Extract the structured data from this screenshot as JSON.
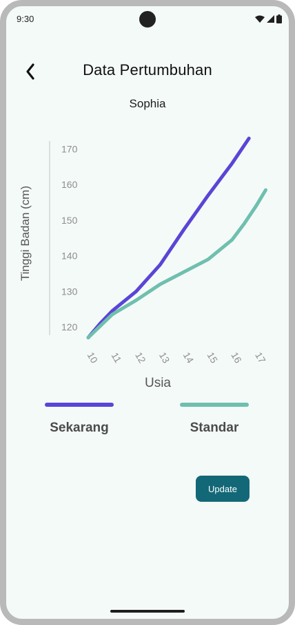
{
  "status_bar": {
    "time": "9:30",
    "icons": [
      "wifi-icon",
      "signal-icon",
      "battery-icon"
    ]
  },
  "header": {
    "back_icon": "chevron-left-icon",
    "title": "Data Pertumbuhan"
  },
  "child_name": "Sophia",
  "chart_data": {
    "type": "line",
    "title": "",
    "xlabel": "Usia",
    "ylabel": "Tinggi Badan (cm)",
    "x": [
      10,
      11,
      12,
      13,
      14,
      15,
      16,
      17
    ],
    "yticks": [
      120,
      130,
      140,
      150,
      160,
      170
    ],
    "ylim": [
      115,
      173
    ],
    "grid": false,
    "series": [
      {
        "name": "Sekarang",
        "color": "#5a45d6",
        "points": [
          [
            10,
            117
          ],
          [
            10.5,
            121
          ],
          [
            11,
            124.5
          ],
          [
            12,
            130
          ],
          [
            13,
            137.5
          ],
          [
            14,
            147.5
          ],
          [
            15,
            157
          ],
          [
            16,
            166
          ],
          [
            16.7,
            173
          ]
        ]
      },
      {
        "name": "Standar",
        "color": "#6fbfae",
        "points": [
          [
            10,
            117
          ],
          [
            11,
            123.5
          ],
          [
            12,
            127.5
          ],
          [
            13,
            132
          ],
          [
            14,
            135.5
          ],
          [
            15,
            139
          ],
          [
            16,
            144.5
          ],
          [
            16.5,
            149
          ],
          [
            17,
            154
          ],
          [
            17.4,
            158.5
          ]
        ]
      }
    ]
  },
  "legend": [
    {
      "label": "Sekarang",
      "color": "#5a45d6"
    },
    {
      "label": "Standar",
      "color": "#6fbfae"
    }
  ],
  "actions": {
    "update_label": "Update",
    "update_color": "#136877"
  }
}
